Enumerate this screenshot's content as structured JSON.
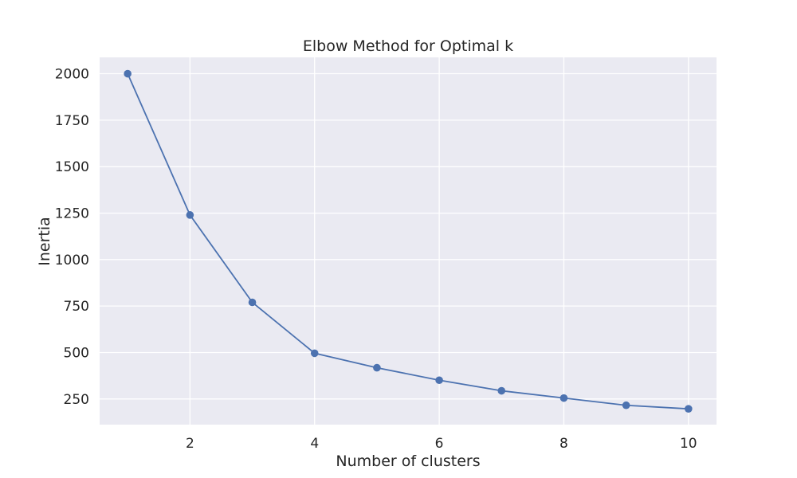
{
  "chart_data": {
    "type": "line",
    "title": "Elbow Method for Optimal k",
    "xlabel": "Number of clusters",
    "ylabel": "Inertia",
    "x": [
      1,
      2,
      3,
      4,
      5,
      6,
      7,
      8,
      9,
      10
    ],
    "series": [
      {
        "values": [
          2000,
          1240,
          770,
          496,
          418,
          351,
          294,
          255,
          216,
          197
        ],
        "color": "#4c72b0",
        "marker": "circle"
      }
    ],
    "xlim": [
      0.55,
      10.45
    ],
    "ylim": [
      112,
      2088
    ],
    "xticks": [
      2,
      4,
      6,
      8,
      10
    ],
    "yticks": [
      250,
      500,
      750,
      1000,
      1250,
      1500,
      1750,
      2000
    ],
    "grid": true,
    "background": "#eaeaf2",
    "gridColor": "#ffffff"
  }
}
